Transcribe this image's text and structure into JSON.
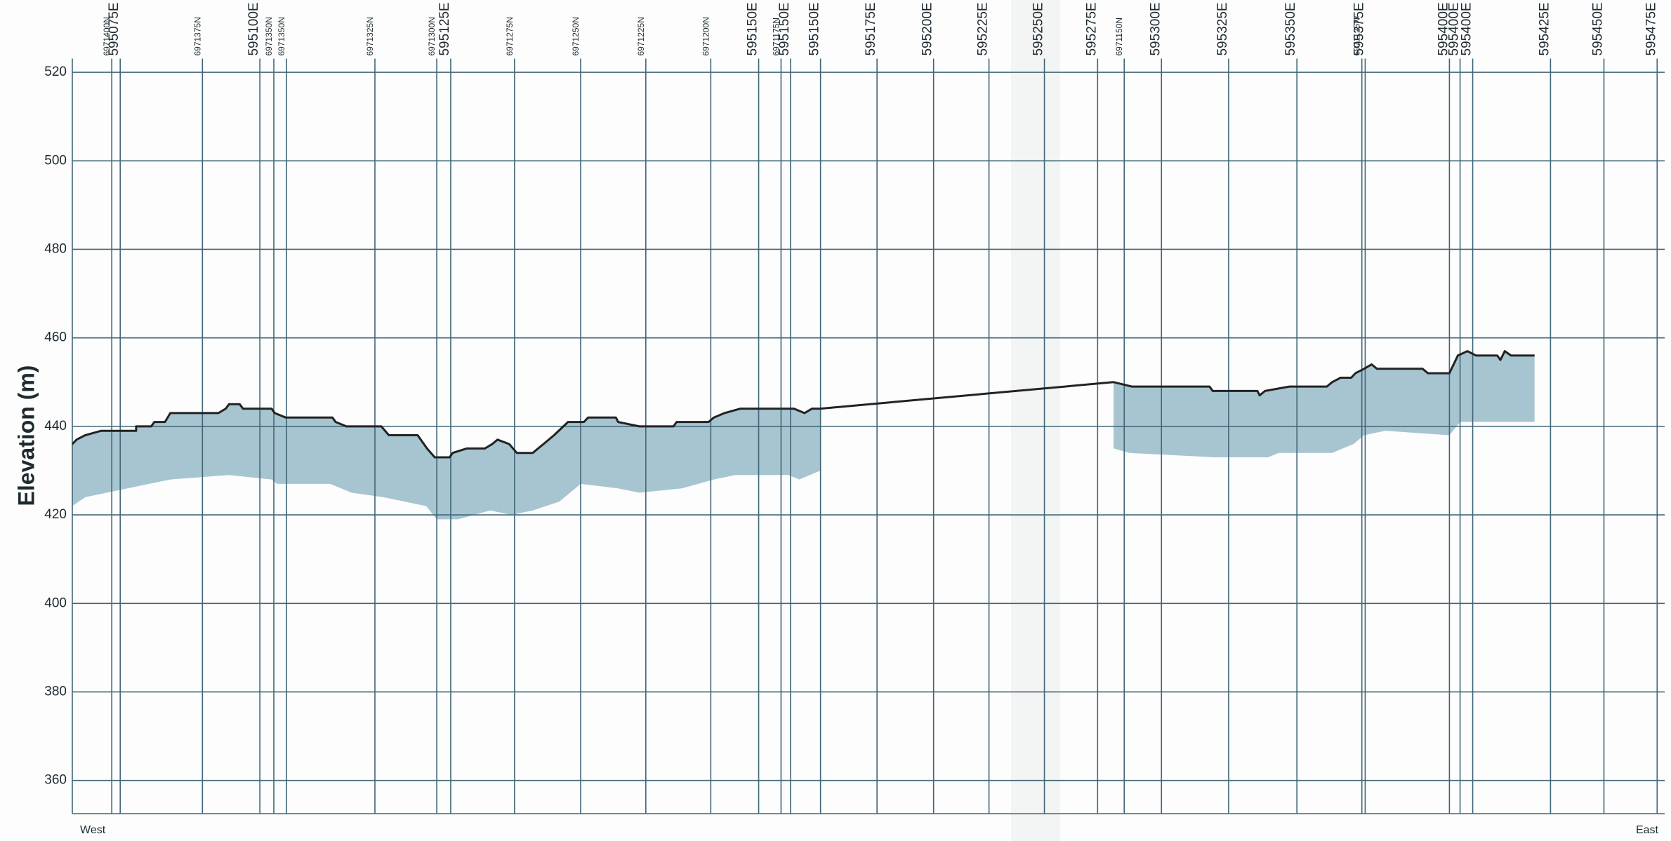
{
  "chart_data": {
    "type": "line",
    "y_label": "Elevation (m)",
    "x_start_label": "West",
    "x_end_label": "East",
    "ylim": [
      352.5,
      523.1
    ],
    "yticks": [
      360,
      380,
      400,
      420,
      440,
      460,
      480,
      500,
      520
    ],
    "xlim": [
      0,
      718.3
    ],
    "xticks": [
      {
        "value": 17.8,
        "label": "6971400N"
      },
      {
        "value": 21.6,
        "label": "595075E"
      },
      {
        "value": 58.7,
        "label": "6971375N"
      },
      {
        "value": 84.6,
        "label": "595100E"
      },
      {
        "value": 90.9,
        "label": "6971350N"
      },
      {
        "value": 96.6,
        "label": "6971350N"
      },
      {
        "value": 136.5,
        "label": "6971325N"
      },
      {
        "value": 164.4,
        "label": "6971300N"
      },
      {
        "value": 170.7,
        "label": "595125E"
      },
      {
        "value": 199.5,
        "label": "6971275N"
      },
      {
        "value": 229.3,
        "label": "6971250N"
      },
      {
        "value": 258.7,
        "label": "6971225N"
      },
      {
        "value": 288.0,
        "label": "6971200N"
      },
      {
        "value": 309.6,
        "label": "595150E"
      },
      {
        "value": 319.7,
        "label": "6971175N"
      },
      {
        "value": 324.0,
        "label": "595150E"
      },
      {
        "value": 337.5,
        "label": "595150E"
      },
      {
        "value": 363.0,
        "label": "595175E"
      },
      {
        "value": 388.5,
        "label": "595200E"
      },
      {
        "value": 413.5,
        "label": "595225E"
      },
      {
        "value": 438.5,
        "label": "595250E"
      },
      {
        "value": 462.5,
        "label": "595275E"
      },
      {
        "value": 474.5,
        "label": "6971150N"
      },
      {
        "value": 491.3,
        "label": "595300E"
      },
      {
        "value": 521.6,
        "label": "595325E"
      },
      {
        "value": 552.4,
        "label": "595350E"
      },
      {
        "value": 581.7,
        "label": "6971125N"
      },
      {
        "value": 583.2,
        "label": "595375E"
      },
      {
        "value": 621.2,
        "label": "595400E"
      },
      {
        "value": 626.0,
        "label": "595400E"
      },
      {
        "value": 631.7,
        "label": "595400E"
      },
      {
        "value": 666.8,
        "label": "595425E"
      },
      {
        "value": 690.9,
        "label": "595450E"
      },
      {
        "value": 714.9,
        "label": "595475E"
      }
    ],
    "surface": {
      "color": "#222222",
      "x": [
        0,
        1.9,
        5.8,
        13,
        28.8,
        28.8,
        35.6,
        37,
        41.8,
        44.2,
        65.9,
        69.2,
        70.7,
        75.5,
        77,
        89.9,
        91.3,
        96.2,
        117.3,
        118.8,
        123.6,
        139.4,
        142.8,
        155.8,
        160,
        163.5,
        170.2,
        171.6,
        177.9,
        186.1,
        189.4,
        191.8,
        197.1,
        200.5,
        207.7,
        212.5,
        217.3,
        223.6,
        230.8,
        232.7,
        245.2,
        246.2,
        255.8,
        271.2,
        272.6,
        287,
        289.4,
        294.2,
        301.4,
        325.5,
        330.3,
        333.7,
        337.5,
        469.7,
        477.9,
        513,
        514.4,
        534.6,
        535.6,
        538,
        549,
        565.9,
        568.3,
        572.1,
        576.9,
        578.8,
        582.7,
        586.1,
        588.5,
        609.1,
        611.5,
        621.2,
        625,
        629.3,
        633.2,
        642.8,
        644.2,
        646.2,
        649,
        659.6
      ],
      "values": [
        436,
        437,
        438,
        439,
        439,
        440,
        440,
        441,
        441,
        443,
        443,
        444,
        445,
        445,
        444,
        444,
        443,
        442,
        442,
        441,
        440,
        440,
        438,
        438,
        435,
        433,
        433,
        434,
        435,
        435,
        436,
        437,
        436,
        434,
        434,
        436,
        438,
        441,
        441,
        442,
        442,
        441,
        440,
        440,
        441,
        441,
        442,
        443,
        444,
        444,
        443,
        444,
        444,
        450,
        449,
        449,
        448,
        448,
        447,
        448,
        449,
        449,
        450,
        451,
        451,
        452,
        453,
        454,
        453,
        453,
        452,
        452,
        456,
        457,
        456,
        456,
        455,
        457,
        456,
        456
      ]
    },
    "sections": [
      {
        "color": "#9dbfcc",
        "x": [
          0,
          5.8,
          15.4,
          44.2,
          70.7,
          89.9,
          92.3,
          116.3,
          126,
          140.4,
          159.6,
          164.4,
          174,
          188.5,
          198.1,
          207.7,
          219.7,
          229.3,
          246.2,
          255.8,
          275,
          289.4,
          299,
          323.1,
          327.9,
          337.5
        ],
        "bottom": [
          422,
          424,
          425,
          428,
          429,
          428,
          427,
          427,
          425,
          424,
          422,
          419,
          419,
          421,
          420,
          421,
          423,
          427,
          426,
          425,
          426,
          428,
          429,
          429,
          428,
          430
        ]
      },
      {
        "color": "#9dbfcc",
        "x": [
          469.7,
          476.9,
          515.4,
          539.4,
          544.2,
          568.3,
          577.9,
          582.7,
          592.3,
          621.2,
          626,
          659.6
        ],
        "bottom": [
          435,
          434,
          433,
          433,
          434,
          434,
          436,
          438,
          439,
          438,
          441,
          441
        ]
      }
    ]
  }
}
